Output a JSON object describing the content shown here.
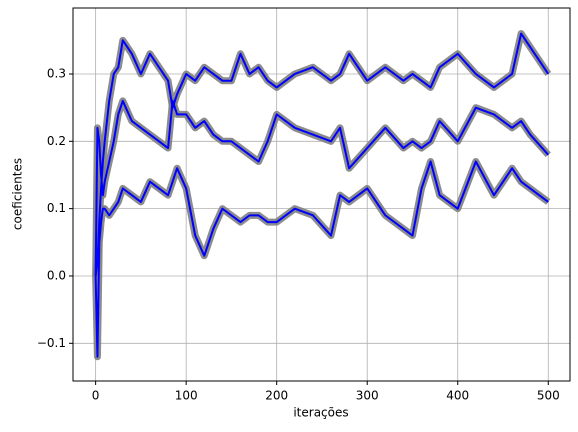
{
  "chart_data": {
    "type": "line",
    "xlabel": "iterações",
    "ylabel": "coeficientes",
    "x": [
      0,
      2,
      4,
      6,
      8,
      10,
      15,
      20,
      25,
      30,
      40,
      50,
      60,
      70,
      80,
      85,
      90,
      100,
      110,
      120,
      130,
      140,
      150,
      160,
      170,
      180,
      190,
      200,
      220,
      240,
      260,
      270,
      280,
      300,
      320,
      340,
      350,
      360,
      370,
      380,
      400,
      420,
      440,
      460,
      470,
      480,
      500
    ],
    "series": [
      {
        "color": "#0000ff",
        "halo_color": "#808080",
        "values": [
          0,
          0.02,
          0.08,
          0.13,
          0.17,
          0.2,
          0.26,
          0.3,
          0.31,
          0.35,
          0.33,
          0.3,
          0.33,
          0.31,
          0.29,
          0.25,
          0.27,
          0.3,
          0.29,
          0.31,
          0.3,
          0.29,
          0.29,
          0.33,
          0.3,
          0.31,
          0.29,
          0.28,
          0.3,
          0.31,
          0.29,
          0.3,
          0.33,
          0.29,
          0.31,
          0.29,
          0.3,
          0.29,
          0.28,
          0.31,
          0.33,
          0.3,
          0.28,
          0.3,
          0.36,
          0.34,
          0.3
        ]
      },
      {
        "color": "#0000ff",
        "halo_color": "#808080",
        "values": [
          0,
          0.22,
          0.2,
          0.15,
          0.12,
          0.14,
          0.17,
          0.2,
          0.24,
          0.26,
          0.23,
          0.22,
          0.21,
          0.2,
          0.19,
          0.26,
          0.24,
          0.24,
          0.22,
          0.23,
          0.21,
          0.2,
          0.2,
          0.19,
          0.18,
          0.17,
          0.2,
          0.24,
          0.22,
          0.21,
          0.2,
          0.22,
          0.16,
          0.19,
          0.22,
          0.19,
          0.2,
          0.19,
          0.2,
          0.23,
          0.2,
          0.25,
          0.24,
          0.22,
          0.23,
          0.21,
          0.18
        ]
      },
      {
        "color": "#0000ff",
        "halo_color": "#808080",
        "values": [
          0,
          -0.12,
          0.05,
          0.08,
          0.1,
          0.1,
          0.09,
          0.1,
          0.11,
          0.13,
          0.12,
          0.11,
          0.14,
          0.13,
          0.12,
          0.14,
          0.16,
          0.13,
          0.06,
          0.03,
          0.07,
          0.1,
          0.09,
          0.08,
          0.09,
          0.09,
          0.08,
          0.08,
          0.1,
          0.09,
          0.06,
          0.12,
          0.11,
          0.13,
          0.09,
          0.07,
          0.06,
          0.13,
          0.17,
          0.12,
          0.1,
          0.17,
          0.12,
          0.16,
          0.14,
          0.13,
          0.11
        ]
      }
    ],
    "xlim": [
      -25,
      524
    ],
    "xticks": [
      0,
      100,
      200,
      300,
      400,
      500
    ],
    "ylim": [
      -0.156,
      0.398
    ],
    "yticks": [
      {
        "value": -0.1,
        "label": "−0.1"
      },
      {
        "value": 0,
        "label": "0.0"
      },
      0.1,
      0.2,
      0.3
    ],
    "grid": true
  }
}
